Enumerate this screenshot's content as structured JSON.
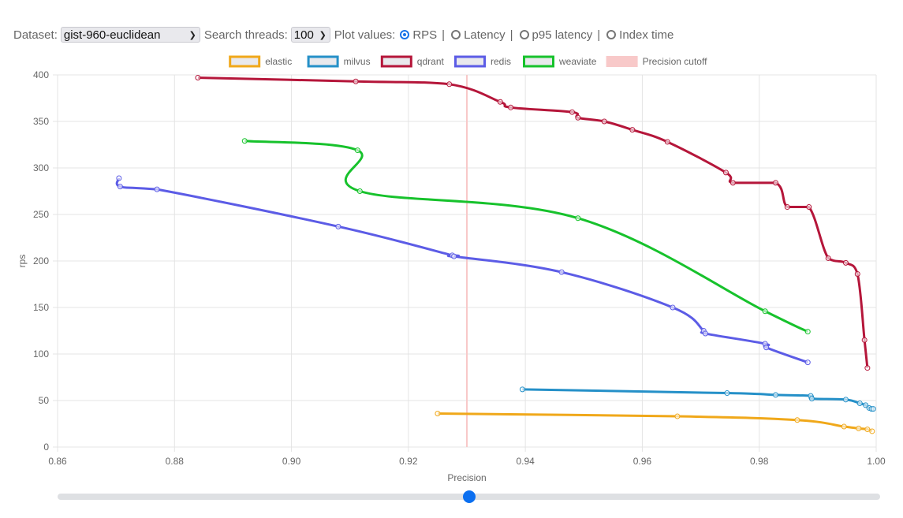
{
  "controls": {
    "dataset_label": "Dataset:",
    "dataset_value": "gist-960-euclidean",
    "threads_label": "Search threads:",
    "threads_value": "100",
    "plot_label": "Plot values:",
    "plot_options": [
      {
        "label": "RPS",
        "checked": true
      },
      {
        "label": "Latency",
        "checked": false
      },
      {
        "label": "p95 latency",
        "checked": false
      },
      {
        "label": "Index time",
        "checked": false
      }
    ],
    "separator": "|"
  },
  "slider": {
    "value": 0.5
  },
  "chart_data": {
    "type": "line",
    "xlabel": "Precision",
    "ylabel": "rps",
    "xlim": [
      0.86,
      1.0
    ],
    "ylim": [
      0,
      400
    ],
    "xticks": [
      "0.86",
      "0.88",
      "0.90",
      "0.92",
      "0.94",
      "0.96",
      "0.98",
      "1.00"
    ],
    "yticks": [
      "0",
      "50",
      "100",
      "150",
      "200",
      "250",
      "300",
      "350",
      "400"
    ],
    "grid": true,
    "legend_position": "top",
    "precision_cutoff": 0.93,
    "cutoff_label": "Precision cutoff",
    "cutoff_color": "#f8c9c9",
    "series": [
      {
        "name": "elastic",
        "color": "#f0a81a",
        "points": [
          [
            0.925,
            36
          ],
          [
            0.966,
            33
          ],
          [
            0.9865,
            29
          ],
          [
            0.9945,
            22
          ],
          [
            0.997,
            20
          ],
          [
            0.9985,
            19
          ],
          [
            0.9993,
            17
          ]
        ]
      },
      {
        "name": "milvus",
        "color": "#2590c8",
        "points": [
          [
            0.9395,
            62
          ],
          [
            0.9745,
            58
          ],
          [
            0.9828,
            56
          ],
          [
            0.9888,
            55
          ],
          [
            0.989,
            52
          ],
          [
            0.9948,
            51
          ],
          [
            0.9972,
            47
          ],
          [
            0.9982,
            45
          ],
          [
            0.9988,
            42
          ],
          [
            0.9992,
            41
          ],
          [
            0.9995,
            41
          ]
        ]
      },
      {
        "name": "qdrant",
        "color": "#b5163a",
        "points": [
          [
            0.884,
            397
          ],
          [
            0.911,
            393
          ],
          [
            0.927,
            390
          ],
          [
            0.9357,
            371
          ],
          [
            0.9375,
            365
          ],
          [
            0.948,
            360
          ],
          [
            0.949,
            354
          ],
          [
            0.9535,
            350
          ],
          [
            0.9583,
            341
          ],
          [
            0.9643,
            328
          ],
          [
            0.9743,
            295
          ],
          [
            0.9755,
            284
          ],
          [
            0.9828,
            284
          ],
          [
            0.9848,
            258
          ],
          [
            0.9885,
            258
          ],
          [
            0.9918,
            203
          ],
          [
            0.9948,
            198
          ],
          [
            0.9968,
            186
          ],
          [
            0.998,
            115
          ],
          [
            0.9985,
            85
          ]
        ]
      },
      {
        "name": "redis",
        "color": "#5c5ce6",
        "points": [
          [
            0.8705,
            289
          ],
          [
            0.8707,
            280
          ],
          [
            0.877,
            277
          ],
          [
            0.908,
            237
          ],
          [
            0.9275,
            206
          ],
          [
            0.9278,
            205
          ],
          [
            0.9462,
            188
          ],
          [
            0.9652,
            150
          ],
          [
            0.9705,
            125
          ],
          [
            0.9708,
            122
          ],
          [
            0.981,
            111
          ],
          [
            0.9812,
            107
          ],
          [
            0.9883,
            91
          ]
        ]
      },
      {
        "name": "weaviate",
        "color": "#17c22c",
        "points": [
          [
            0.892,
            329
          ],
          [
            0.9113,
            319
          ],
          [
            0.9117,
            275
          ],
          [
            0.949,
            246
          ],
          [
            0.981,
            146
          ],
          [
            0.9883,
            124
          ]
        ]
      }
    ]
  }
}
